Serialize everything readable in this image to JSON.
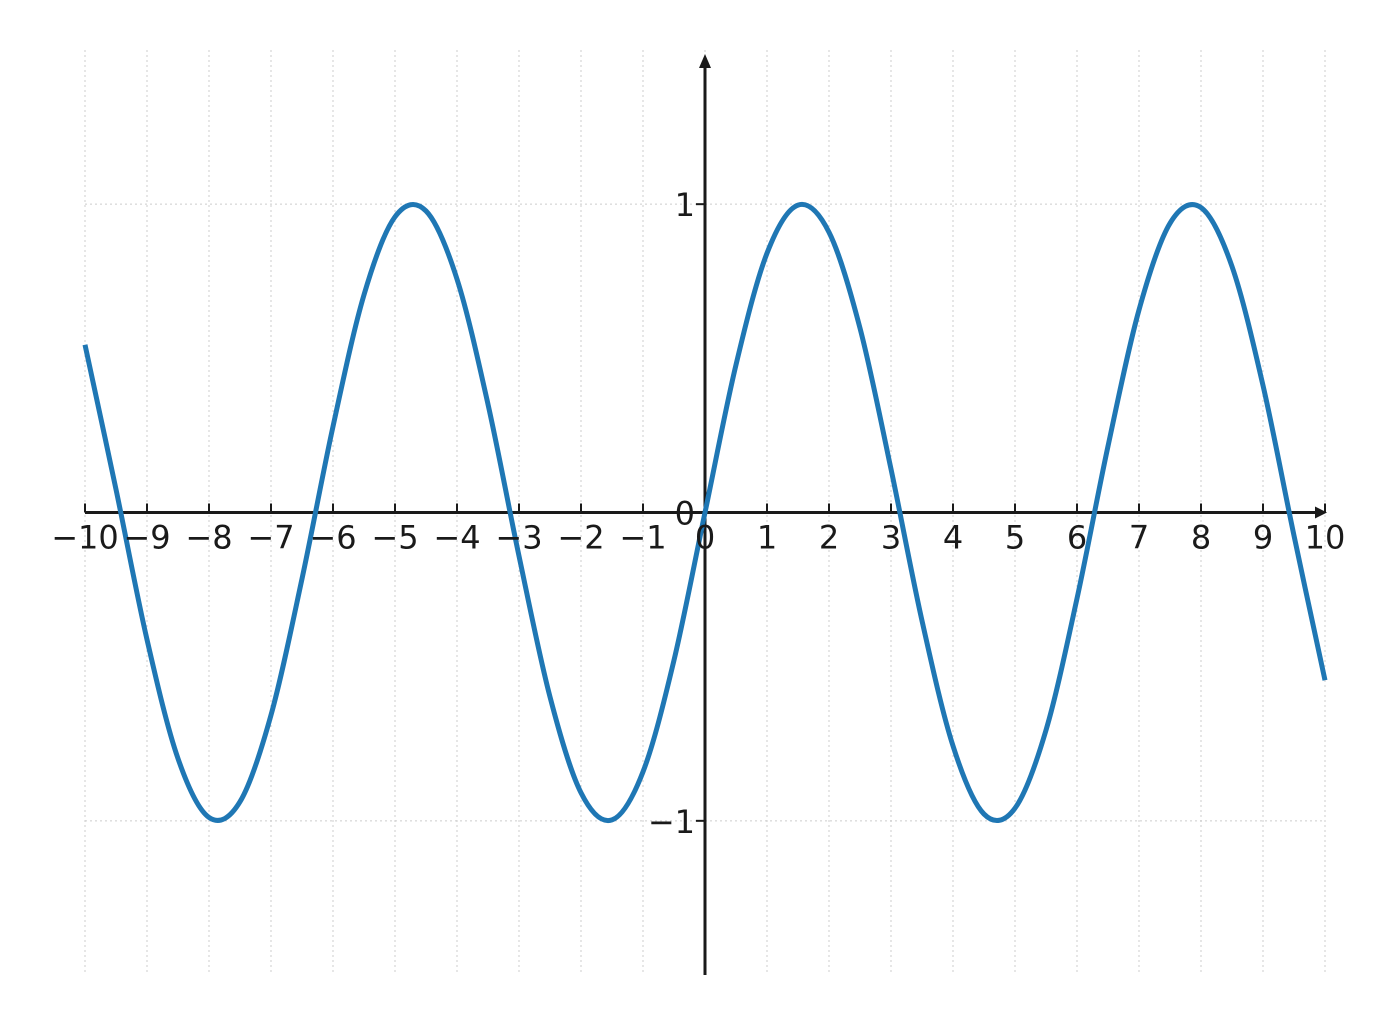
{
  "chart_data": {
    "type": "line",
    "title": "",
    "xlabel": "",
    "ylabel": "",
    "xlim": [
      -10,
      10
    ],
    "ylim": [
      -1.5,
      1.5
    ],
    "grid": true,
    "axes_through_origin": true,
    "axis_arrows": true,
    "x_ticks": [
      -10,
      -9,
      -8,
      -7,
      -6,
      -5,
      -4,
      -3,
      -2,
      -1,
      0,
      1,
      2,
      3,
      4,
      5,
      6,
      7,
      8,
      9,
      10
    ],
    "x_tick_labels": [
      "−10",
      "−9",
      "−8",
      "−7",
      "−6",
      "−5",
      "−4",
      "−3",
      "−2",
      "−1",
      "0",
      "1",
      "2",
      "3",
      "4",
      "5",
      "6",
      "7",
      "8",
      "9",
      "10"
    ],
    "y_ticks": [
      -1,
      0,
      1
    ],
    "y_tick_labels": [
      "−1",
      "0",
      "1"
    ],
    "series": [
      {
        "color": "#1f77b4",
        "x": [
          -10,
          -9.5,
          -9,
          -8.5,
          -8,
          -7.5,
          -7,
          -6.5,
          -6,
          -5.5,
          -5,
          -4.5,
          -4,
          -3.5,
          -3,
          -2.5,
          -2,
          -1.5,
          -1,
          -0.5,
          0,
          0.5,
          1,
          1.5,
          2,
          2.5,
          3,
          3.5,
          4,
          4.5,
          5,
          5.5,
          6,
          6.5,
          7,
          7.5,
          8,
          8.5,
          9,
          9.5,
          10
        ],
        "y": [
          0.544,
          0.075,
          -0.412,
          -0.798,
          -0.989,
          -0.938,
          -0.657,
          -0.215,
          0.279,
          0.706,
          0.959,
          0.978,
          0.757,
          0.351,
          -0.141,
          -0.598,
          -0.909,
          -0.997,
          -0.841,
          -0.479,
          0.0,
          0.479,
          0.841,
          0.997,
          0.909,
          0.598,
          0.141,
          -0.351,
          -0.757,
          -0.978,
          -0.959,
          -0.706,
          -0.279,
          0.215,
          0.657,
          0.938,
          0.989,
          0.798,
          0.412,
          -0.075,
          -0.544
        ]
      }
    ]
  }
}
